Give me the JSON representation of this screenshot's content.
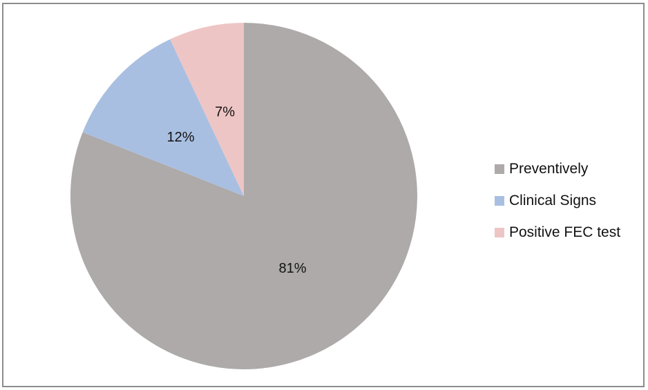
{
  "chart_data": {
    "type": "pie",
    "categories": [
      "Preventively",
      "Clinical Signs",
      "Positive FEC test"
    ],
    "values": [
      81,
      12,
      7
    ],
    "data_labels": [
      "81%",
      "12%",
      "7%"
    ],
    "colors": [
      "#adaaa9",
      "#a9bfe1",
      "#eec5c5"
    ],
    "start_angle": "12 o'clock, clockwise",
    "legend_position": "right"
  }
}
